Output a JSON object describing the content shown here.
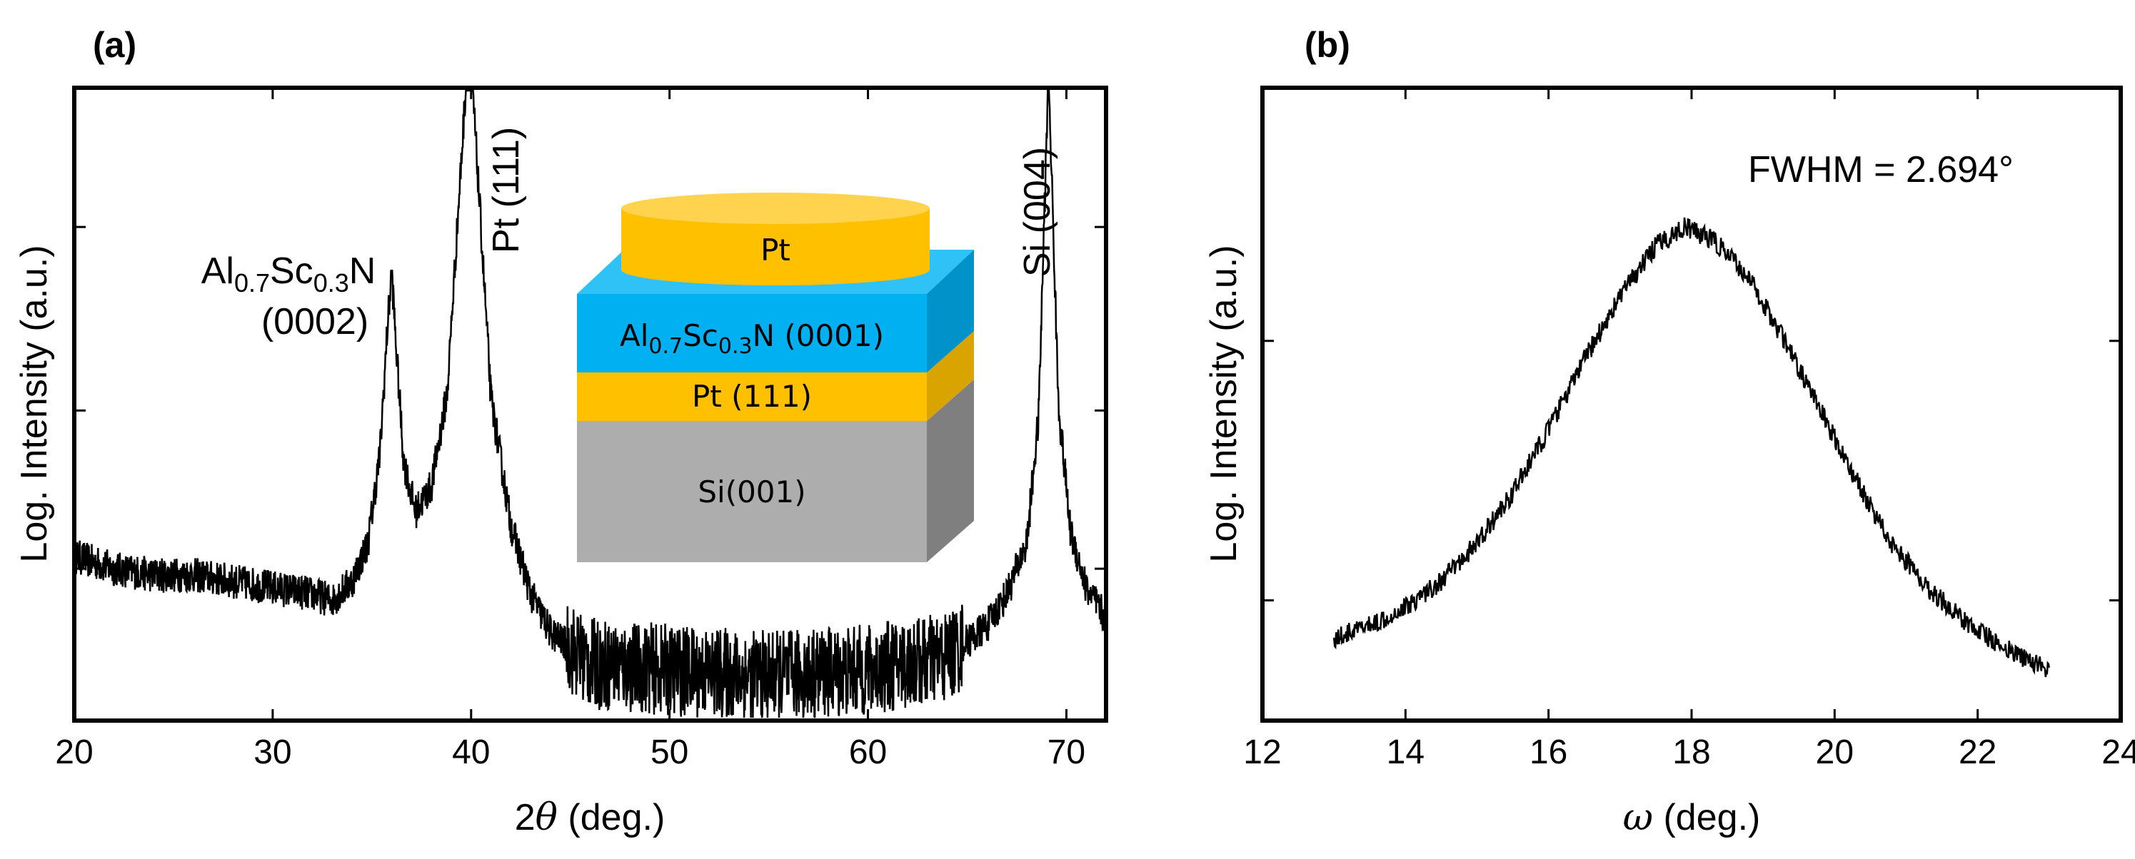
{
  "panels": {
    "a": {
      "label": "(a)",
      "xlabel_pre": "2",
      "xlabel_theta": "θ",
      "xlabel_post": " (deg.)",
      "ylabel": "Log. Intensity (a.u.)",
      "peak_labels": {
        "alscn_base1": "Al",
        "alscn_sub1": "0.7",
        "alscn_base2": "Sc",
        "alscn_sub2": "0.3",
        "alscn_base3": "N",
        "alscn_hkl": "(0002)",
        "pt": "Pt (111)",
        "si": "Si (004)"
      },
      "inset": {
        "top_electrode": "Pt",
        "film_base1": "Al",
        "film_sub1": "0.7",
        "film_base2": "Sc",
        "film_sub2": "0.3",
        "film_base3": "N (0001)",
        "bottom_electrode": "Pt (111)",
        "substrate": "Si(001)",
        "colors": {
          "pt": "#FFC000",
          "pt_side": "#D9A300",
          "alscn": "#00B0F0",
          "alscn_side": "#0092C8",
          "si": "#ADADAD",
          "si_side": "#7F7F7F"
        }
      }
    },
    "b": {
      "label": "(b)",
      "xlabel_omega": "ω",
      "xlabel_post": " (deg.)",
      "ylabel": "Log. Intensity (a.u.)",
      "annotation": "FWHM = 2.694°"
    }
  },
  "chart_data": [
    {
      "type": "line",
      "panel": "a",
      "xlabel": "2θ (deg.)",
      "ylabel": "Log. Intensity (a.u.)",
      "xlim": [
        20,
        72
      ],
      "ylim": [
        0,
        10
      ],
      "xticks": [
        20,
        30,
        40,
        50,
        60,
        70
      ],
      "y_tick_values": [
        2.4,
        4.9,
        7.8
      ],
      "y_tick_labels_shown": false,
      "grid": false,
      "peaks": [
        {
          "label": "Al0.7Sc0.3N (0002)",
          "x": 36.0,
          "y": 7.1
        },
        {
          "label": "Pt (111)",
          "x": 39.9,
          "y": 10.9
        },
        {
          "label": "Si (004)",
          "x": 69.1,
          "y": 10.3
        }
      ],
      "series": [
        {
          "x": [
            20,
            22,
            24,
            26,
            28,
            30,
            32,
            33,
            34,
            34.8,
            35.4,
            35.8,
            36.0,
            36.2,
            36.6,
            37.2,
            38.0,
            38.8,
            39.4,
            39.9,
            40.4,
            41.0,
            42.0,
            43.0,
            44.0,
            46.0,
            50.0,
            55.0,
            60.0,
            64.0,
            66.0,
            67.0,
            68.0,
            68.6,
            69.1,
            69.6,
            70.2,
            71.0,
            72.0
          ],
          "y": [
            2.6,
            2.4,
            2.3,
            2.3,
            2.2,
            2.1,
            2.0,
            1.9,
            2.2,
            2.8,
            4.2,
            6.3,
            7.1,
            6.0,
            4.1,
            3.3,
            3.7,
            5.2,
            8.3,
            10.9,
            8.3,
            5.1,
            3.1,
            2.0,
            1.4,
            0.9,
            0.8,
            0.7,
            0.8,
            1.0,
            1.5,
            2.0,
            2.8,
            4.8,
            10.3,
            5.0,
            3.0,
            2.1,
            1.6
          ]
        }
      ]
    },
    {
      "type": "line",
      "panel": "b",
      "xlabel": "ω (deg.)",
      "ylabel": "Log. Intensity (a.u.)",
      "xlim": [
        12,
        24
      ],
      "ylim": [
        0,
        10
      ],
      "xticks": [
        12,
        14,
        16,
        18,
        20,
        22,
        24
      ],
      "y_tick_values": [
        1.9,
        6.0
      ],
      "y_tick_labels_shown": false,
      "grid": false,
      "fwhm_deg": 2.694,
      "peak_center": 17.9,
      "series": [
        {
          "x": [
            13.0,
            13.5,
            14.0,
            14.5,
            15.0,
            15.5,
            16.0,
            16.5,
            17.0,
            17.5,
            17.9,
            18.3,
            18.8,
            19.3,
            19.8,
            20.3,
            20.8,
            21.3,
            21.8,
            22.3,
            22.8,
            23.0
          ],
          "y": [
            1.3,
            1.5,
            1.8,
            2.2,
            2.8,
            3.6,
            4.6,
            5.7,
            6.7,
            7.5,
            7.8,
            7.6,
            7.0,
            6.0,
            4.9,
            3.8,
            2.8,
            2.1,
            1.6,
            1.2,
            0.9,
            0.8
          ]
        }
      ]
    }
  ]
}
